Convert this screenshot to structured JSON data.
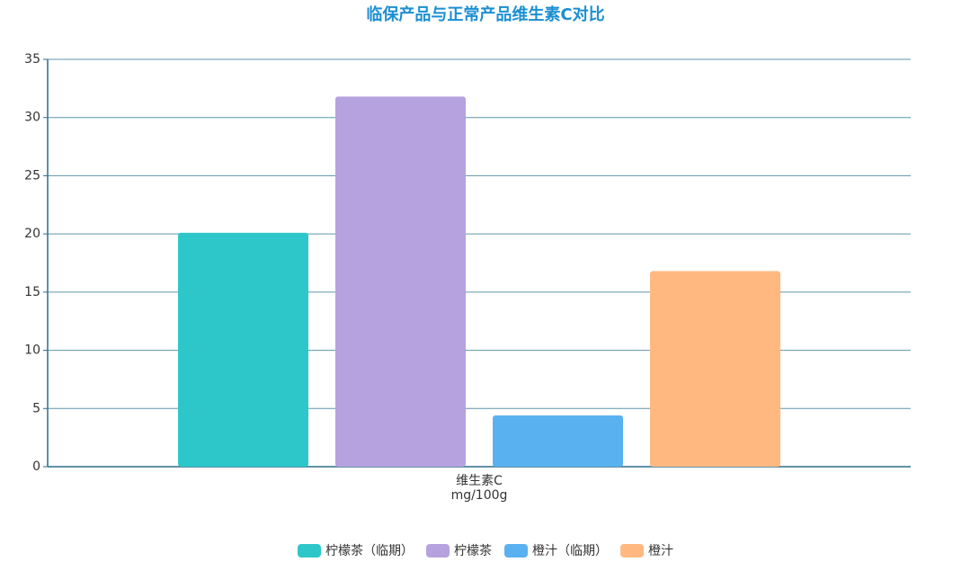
{
  "chart_data": {
    "type": "bar",
    "title": "临保产品与正常产品维生素C对比",
    "categories": [
      "维生素C"
    ],
    "x_unit": "mg/100g",
    "series": [
      {
        "name": "柠檬茶（临期）",
        "color": "#2ec7c9",
        "values": [
          20.1
        ]
      },
      {
        "name": "柠檬茶",
        "color": "#b6a2de",
        "values": [
          31.8
        ]
      },
      {
        "name": "橙汁（临期）",
        "color": "#5ab1ef",
        "values": [
          4.4
        ]
      },
      {
        "name": "橙汁",
        "color": "#ffb980",
        "values": [
          16.8
        ]
      }
    ],
    "ylim": [
      0,
      35
    ],
    "yticks": [
      0,
      5,
      10,
      15,
      20,
      25,
      30,
      35
    ],
    "grid": true,
    "legend": "bottom"
  }
}
